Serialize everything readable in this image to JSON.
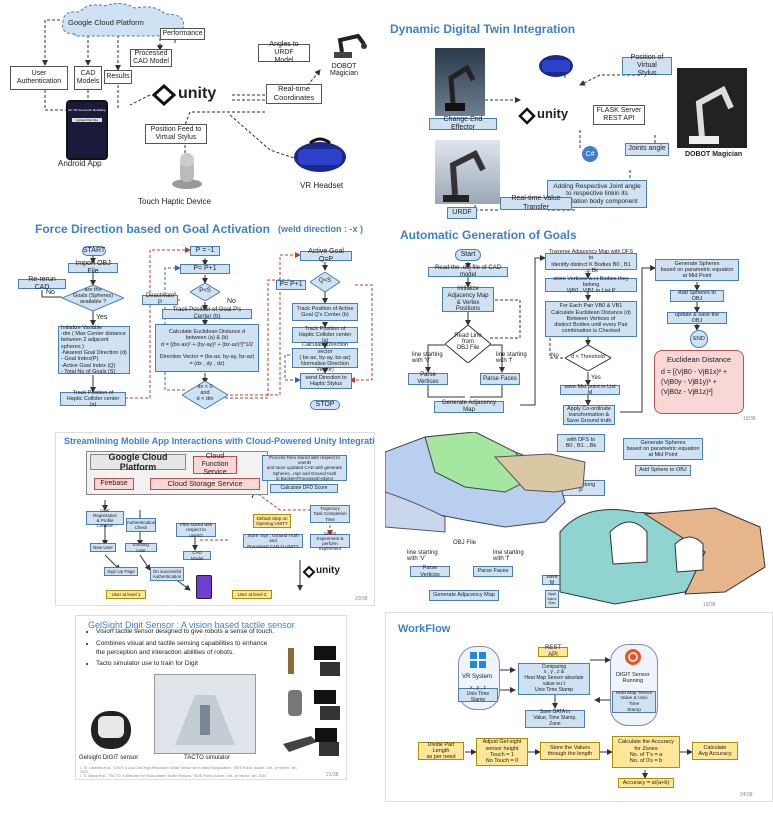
{
  "p1": {
    "cloud": "Google Cloud Platform",
    "user_auth": "User\nAuthentication",
    "cad_models": "CAD\nModels",
    "results": "Results",
    "performance": "Performance",
    "processed_cad": "Processed\nCAD Model",
    "angles_urdf": "Angles to URDF\nModel",
    "dobot": "DOBOT\nMagician",
    "realtime": "Real-time\nCoordinates",
    "unity": "unity",
    "position_feed": "Position Feed to\nVirtual Stylus",
    "vr": "VR Headset",
    "android": "Android App",
    "haptic": "Touch Haptic Device",
    "phone_title": "EF VR Geometric Modelling",
    "phone_btn": "Upload Part File"
  },
  "p2": {
    "title": "Dynamic Digital Twin  Integration",
    "position_virtual": "Position of Virtual\nStylus",
    "flask": "FLASK Server\nREST API",
    "change_effector": "Change End Effector",
    "joints_angle": "Joints angle",
    "dobot": "DOBOT Magician",
    "adding_joint": "Adding Respective Joint angle\nto respective linkin its\narticulation body component",
    "realtime_transfer": "Real-time Value Transfer",
    "urdf": "URDF",
    "unity": "unity",
    "csharp": "C#"
  },
  "p3": {
    "title": "Force Direction based on Goal Activation",
    "weld": "(weld direction : -x )",
    "start": "START",
    "import": "Import OBJ File",
    "rerun": "Re-rerun CAD",
    "goals_q": "are the\nGoals (Spheres)\navailable ?",
    "no": "No",
    "yes": "Yes",
    "init": "Initialize Variable\n-dm ( Max Center distance\nbetween 2 adjacent spheres )\n-Nearest Goal Direction (d)\n- Goal Index(P)\n-Active Goal Index (Q)\n- Total No of Goals (S)",
    "track_pos": "Track Position of\nHaptic Collider center (a)",
    "p_eq": "P = -1",
    "p_inc": "P= P+1",
    "p_lt_s": "P<S",
    "deactivate": "Deactivate P",
    "track_goal": "Track Position of Goal P's Center (b)",
    "calc": "Calculate Euclidean Distance d\nbetween (a) & (b)\nd = [(bx-ax)² + (by-ay)² + (bz-az)²]^1/2\n\nDirection Vector = (bx-ax, by-ay, bz-az)\n= (dx , dy , dz)",
    "dx_cond": "dx < 0\nand\nd < dm",
    "active_goal": "Active Goal  Q=P",
    "p_inc2": "P= P+1",
    "q_lt_s": "Q<S",
    "track_active": "Track Position of Active\nGoal Q's Center (b)",
    "track_haptic": "Track Position of\nHaptic Collider center (a)",
    "calc_dir": "Calculate Direction vector\n( bx-ax, by-ay, bz-az)\nNormalise Direction Vector)",
    "send_dir": "send Direction to\nHaptic Stylus",
    "stop": "STOP"
  },
  "p4": {
    "title": "Automatic Generation of Goals",
    "start": "Start",
    "read": "Read the .obj file of CAD model",
    "init_adj": "Initialize\nAdjacency Map\n& Vertex Positions",
    "read_line": "Read Line\nfrom\nOBJ File",
    "line_v": "line starting\nwith 'V'",
    "line_f": "line starting\nwith 'f'",
    "parse_v": "Parse Vertices",
    "parse_f": "Parse Faces",
    "gen_adj": "Generate Adjacency Map",
    "traverse": "Traverse Adjacency Map with DFS to\nIdentify distinct K Bodies B0 , B1 .....Bk",
    "store": "store Vertices w.r.t Bodies they belong\nVjB0 , VjB1 in List P",
    "each_pair": "For Each Pair VB0 & VB1\nCalculate Euclidean Distance (d)\nBetween Vertices of\ndistinct Bodies until every Pair\ncombination is Checked",
    "threshold": "d < Threshold",
    "no": "No",
    "yes": "Yes",
    "save_mid": "save Mid point in List M",
    "apply": "Apply Co-ordinate\ntransformation &\nSave Ground truth",
    "gen_spheres": "Generate Spheres\nbased on parametric equation\nat Mid Point",
    "add_spheres": "Add Spheres to OBJ",
    "update": "update & save the OBJ",
    "end": "END",
    "euclid_title": "Euclidean Distance",
    "euclid_eq": "d = [(VjB0 - VjB1x)² +\n(VjB0y - VjB1y)² +\n(VjB0z - VjB1z)²]",
    "page": "19/38"
  },
  "p5": {
    "title": "Streamlining Mobile App Interactions with Cloud-Powered Unity Integration",
    "gcp": "Google Cloud Platform",
    "cloud_function": "Cloud Function\nService",
    "process_files": "Process Files stored with respect to userID\nand store updated CAD with generate\nSpheres, .mpr and Ground truth\nin Bucket<Processed>object",
    "calc_dfd": "Calculate DFD Score",
    "firebase": "Firebase",
    "storage": "Cloud Storage Service",
    "user_reg": "User Registration\n& Profile Creation",
    "auth_check": "Authentication\nCheck",
    "files_stored": "Files stored with\nrespect to userID",
    "default_step": "Default Step on\nOpening UNITY",
    "trajectory": "Trajectory\nTask Completion\nTime",
    "new_user": "New User",
    "existing_user": "Existing User",
    "cad_model": "CAD Model",
    "store_mpr": "Store .mpr , Ground Truth and\nProcessed CAD in UNITY",
    "select_exp": "Select Experiment &\nperform experiment",
    "signup": "Sign Up Page",
    "on_success": "On successful\nAuthentication",
    "user_l1": "User at level 1",
    "user_l2": "User at level 2",
    "unity": "unity",
    "page": "20/38"
  },
  "p6": {
    "title": "GelSight Digit Sensor : A vision based tactile sensor",
    "bullets": [
      "Vision tactile sensor designed to give robots a sense of touch.",
      "Combines visual and tactile sensing capabilities to enhance the perception and interaction abilities of robots.",
      "Tacto simulator use to train for Digit"
    ],
    "gelsight": "Gelsight DIGIT sensor",
    "tacto": "TACTO simulator",
    "refs": "1. M. Lambeta et al., \"DIGIT: A Low-Cost High-Resolution Tactile Sensor for In-Hand Manipulation,\" IEEE Robot. Autom. Lett., pr reprint, Jan. 2020.\n2. S. Wang et al., \"TACTO: A Simulator for Vision-based Tactile Sensors,\" IEEE Robot. Autom. Lett., pr reprint, Jan. 2020.",
    "page": "21/38"
  },
  "p7": {
    "title": "WorkFlow",
    "vr_system": "VR System",
    "xyz_vr": "x , y , z\nUnix Time Stamp",
    "rest_api": "REST API",
    "comparing": "Comparing\nx , y , z  &\nHeat Map Sensor absolute\nvalue w.r.t\nUnix Time Stamp",
    "save_data": "Save DATA in\nValue, Time Stamp, Zone",
    "digit_running": "DIGIT Sensor\nRunning",
    "heatmap": "Heat Map Tensor\nValue & Unix Time\nStamp",
    "divide": "Divide Part Length\nas per need",
    "adjust": "Adjust Gel-sight\nsensor height\nTouch  = 1\nNo Touch = 0",
    "store_values": "Store the Values\nthrough the length",
    "calc_acc": "Calculate the Accuracy\nfor Zones\nNo. of T's = a\nNo. of 0's = b",
    "accuracy": "Accuracy = a/(a+b)",
    "calc_avg": "Calculate\nAvg Accuracy",
    "page": "24/38"
  },
  "p8": {
    "traverse": "with DFS to\nB0 , B1 ...Bk",
    "gen_spheres": "Generate Spheres\nbased on parametric equation\nat Mid Point",
    "add_spheres": "Add Sphere to OBJ",
    "belong": "they belong\nP",
    "line_v": "line starting\nwith 'V'",
    "line_f": "line starting\nwith 'f'",
    "obj_file": "OBJ File",
    "parse_v": "Parse Vertices",
    "parse_f": "Parse Faces",
    "gen_adj": "Generate Adjacency Map",
    "save_m": "save M",
    "apply": "Appl\ntrans\nSav",
    "page": "19/38"
  },
  "colors": {
    "accent": "#3d7fd1",
    "box_blue": "#cfe2f3",
    "pink": "#f8d7d7",
    "yellow": "#ffe699"
  }
}
